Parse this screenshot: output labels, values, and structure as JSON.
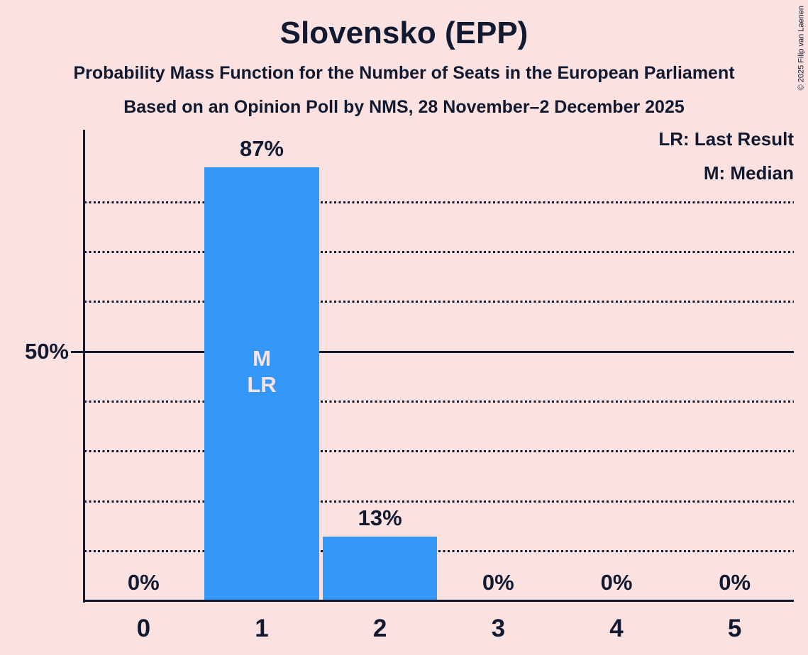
{
  "title": "Slovensko (EPP)",
  "subtitles": [
    "Probability Mass Function for the Number of Seats in the European Parliament",
    "Based on an Opinion Poll by NMS, 28 November–2 December 2025"
  ],
  "copyright": "© 2025 Filip van Laenen",
  "legend": {
    "last_result": "LR: Last Result",
    "median": "M: Median"
  },
  "y_axis": {
    "tick_label": "50%",
    "tick_value": 50
  },
  "chart_data": {
    "type": "bar",
    "title": "Slovensko (EPP)",
    "xlabel": "",
    "ylabel": "",
    "categories": [
      "0",
      "1",
      "2",
      "3",
      "4",
      "5"
    ],
    "values": [
      0,
      87,
      13,
      0,
      0,
      0
    ],
    "value_labels": [
      "0%",
      "87%",
      "13%",
      "0%",
      "0%",
      "0%"
    ],
    "unit": "percent",
    "ylim": [
      0,
      94.5
    ],
    "y_solid_gridline": 50,
    "y_dotted_gridlines": [
      10,
      20,
      30,
      40,
      60,
      70,
      80
    ],
    "y_tick_labels": [
      {
        "value": 50,
        "label": "50%"
      }
    ],
    "grid": "horizontal-dotted",
    "legend_position": "top-right",
    "median_seat_index": 1,
    "last_result_seat_index": 1,
    "annotations": [
      {
        "seat_index": 1,
        "labels": [
          "M",
          "LR"
        ]
      }
    ],
    "colors": {
      "bar": "#3498F8",
      "background": "#FCE1E1",
      "text": "#121A32",
      "bar_annotation_text": "#FCE1E1"
    }
  }
}
